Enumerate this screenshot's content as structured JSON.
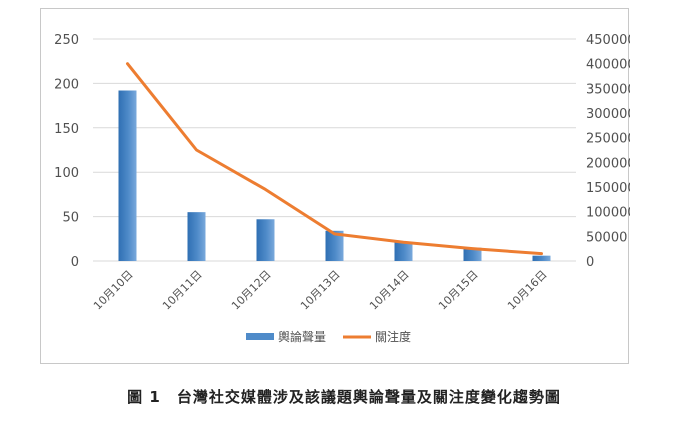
{
  "chart_data": {
    "type": "bar",
    "categories": [
      "10月10日",
      "10月11日",
      "10月12日",
      "10月13日",
      "10月14日",
      "10月15日",
      "10月16日"
    ],
    "series": [
      {
        "name": "輿論聲量",
        "type": "bar",
        "axis": "left",
        "color": "#4f8bc9",
        "values": [
          192,
          55,
          47,
          34,
          21,
          15,
          6
        ]
      },
      {
        "name": "關注度",
        "type": "line",
        "axis": "right",
        "color": "#ed7d31",
        "values": [
          400000,
          225000,
          145000,
          55000,
          38000,
          25000,
          15000
        ]
      }
    ],
    "ylim": [
      0,
      250
    ],
    "y_ticks": [
      0,
      50,
      100,
      150,
      200,
      250
    ],
    "y2lim": [
      0,
      450000
    ],
    "y2_ticks": [
      0,
      50000,
      100000,
      150000,
      200000,
      250000,
      300000,
      350000,
      400000,
      450000
    ],
    "grid": true,
    "legend_position": "bottom"
  },
  "caption": "圖 1　台灣社交媒體涉及該議題輿論聲量及關注度變化趨勢圖"
}
